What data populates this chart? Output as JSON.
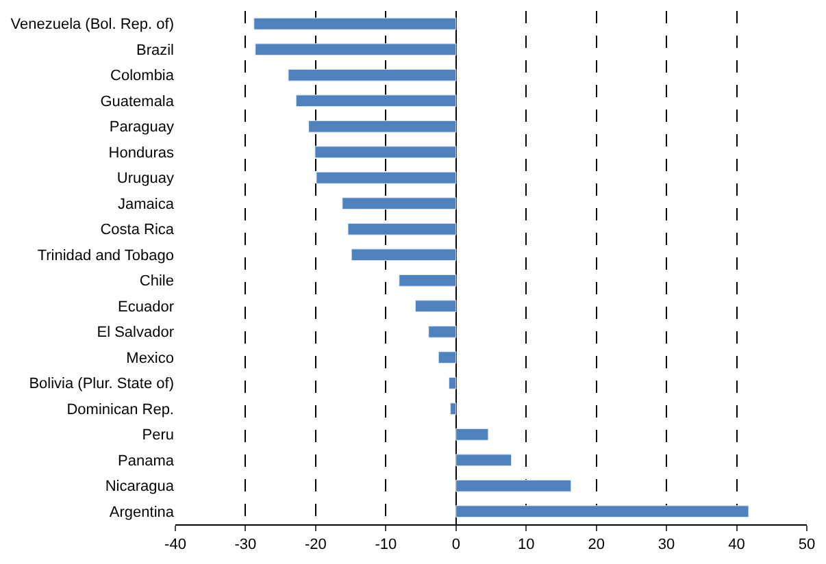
{
  "chart_data": {
    "type": "bar",
    "orientation": "horizontal",
    "categories": [
      "Venezuela (Bol. Rep. of)",
      "Brazil",
      "Colombia",
      "Guatemala",
      "Paraguay",
      "Honduras",
      "Uruguay",
      "Jamaica",
      "Costa Rica",
      "Trinidad and Tobago",
      "Chile",
      "Ecuador",
      "El Salvador",
      "Mexico",
      "Bolivia (Plur. State of)",
      "Dominican Rep.",
      "Peru",
      "Panama",
      "Nicaragua",
      "Argentina"
    ],
    "values": [
      -28.8,
      -28.6,
      -23.9,
      -22.8,
      -21.0,
      -20.1,
      -19.9,
      -16.2,
      -15.4,
      -14.9,
      -8.1,
      -5.8,
      -3.9,
      -2.5,
      -1.0,
      -0.8,
      4.6,
      7.9,
      16.4,
      41.7
    ],
    "color": "#4f81bd",
    "xlim": [
      -40,
      50
    ],
    "xticks": [
      -40,
      -30,
      -20,
      -10,
      0,
      10,
      20,
      30,
      40,
      50
    ],
    "grid": "x"
  }
}
